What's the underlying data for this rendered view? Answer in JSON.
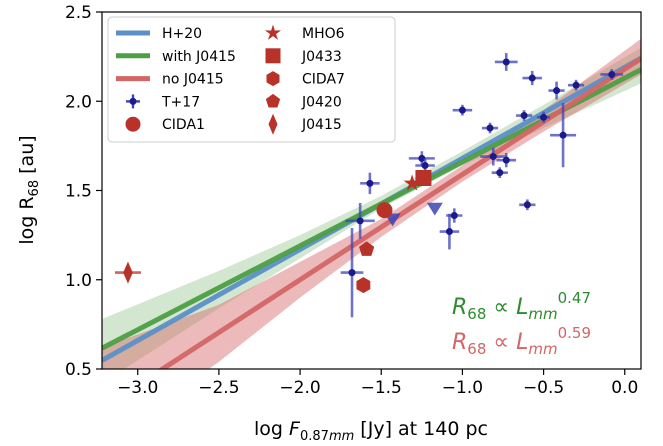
{
  "chart_data": {
    "type": "scatter",
    "xlabel": "log F0.87mm [Jy] at 140 pc",
    "ylabel": "log R68 [au]",
    "xlim": [
      -3.22,
      0.1
    ],
    "ylim": [
      0.5,
      2.5
    ],
    "x_ticks": [
      "−3.0",
      "−2.5",
      "−2.0",
      "−1.5",
      "−1.0",
      "−0.5",
      "0.0"
    ],
    "x_tick_values": [
      -3.0,
      -2.5,
      -2.0,
      -1.5,
      -1.0,
      -0.5,
      0.0
    ],
    "y_ticks": [
      "0.5",
      "1.0",
      "1.5",
      "2.0",
      "2.5"
    ],
    "y_tick_values": [
      0.5,
      1.0,
      1.5,
      2.0,
      2.5
    ],
    "grid": false,
    "legend_position": "top-left",
    "legend": [
      {
        "label": "H+20",
        "kind": "line",
        "color": "#5b8fc7"
      },
      {
        "label": "with J0415",
        "kind": "line",
        "color": "#4e9e45"
      },
      {
        "label": "no J0415",
        "kind": "line",
        "color": "#d46565"
      },
      {
        "label": "T+17",
        "kind": "errorpoint",
        "color": "#1a1a8c"
      },
      {
        "label": "CIDA1",
        "kind": "circle",
        "color": "#b8322a"
      },
      {
        "label": "MHO6",
        "kind": "star",
        "color": "#b8322a"
      },
      {
        "label": "J0433",
        "kind": "square",
        "color": "#b8322a"
      },
      {
        "label": "CIDA7",
        "kind": "hexagon",
        "color": "#b8322a"
      },
      {
        "label": "J0420",
        "kind": "pentagon",
        "color": "#b8322a"
      },
      {
        "label": "J0415",
        "kind": "diamond",
        "color": "#b8322a"
      }
    ],
    "fits": [
      {
        "name": "H+20",
        "slope": 0.51,
        "intercept": 2.19,
        "color": "#5b8fc7"
      },
      {
        "name": "with J0415",
        "slope": 0.47,
        "intercept": 2.13,
        "color": "#4e9e45",
        "band": [
          [
            -3.22,
            0.42,
            0.78
          ],
          [
            -2.5,
            0.84,
            1.05
          ],
          [
            -2.0,
            1.12,
            1.25
          ],
          [
            -1.5,
            1.4,
            1.47
          ],
          [
            -1.0,
            1.64,
            1.72
          ],
          [
            -0.5,
            1.85,
            1.98
          ],
          [
            0.1,
            2.1,
            2.3
          ]
        ]
      },
      {
        "name": "no J0415",
        "slope": 0.59,
        "intercept": 2.18,
        "color": "#d46565",
        "band": [
          [
            -3.22,
            0.08,
            0.62
          ],
          [
            -2.5,
            0.54,
            0.86
          ],
          [
            -2.0,
            0.9,
            1.1
          ],
          [
            -1.5,
            1.24,
            1.34
          ],
          [
            -1.0,
            1.55,
            1.64
          ],
          [
            -0.5,
            1.83,
            1.95
          ],
          [
            0.1,
            2.15,
            2.35
          ]
        ]
      }
    ],
    "series": [
      {
        "name": "T+17",
        "color": "#1a1a8c",
        "points": [
          {
            "x": -0.73,
            "y": 2.22,
            "xerr": 0.07,
            "yerr": 0.05
          },
          {
            "x": -0.57,
            "y": 2.13,
            "xerr": 0.06,
            "yerr": 0.04
          },
          {
            "x": -0.42,
            "y": 2.06,
            "xerr": 0.05,
            "yerr": 0.05
          },
          {
            "x": -0.3,
            "y": 2.09,
            "xerr": 0.05,
            "yerr": 0.03
          },
          {
            "x": -0.08,
            "y": 2.15,
            "xerr": 0.07,
            "yerr": 0.03
          },
          {
            "x": -1.0,
            "y": 1.95,
            "xerr": 0.06,
            "yerr": 0.03
          },
          {
            "x": -0.5,
            "y": 1.91,
            "xerr": 0.04,
            "yerr": 0.03
          },
          {
            "x": -0.38,
            "y": 1.81,
            "xerr": 0.08,
            "yerr": 0.18
          },
          {
            "x": -0.62,
            "y": 1.92,
            "xerr": 0.05,
            "yerr": 0.03
          },
          {
            "x": -0.83,
            "y": 1.85,
            "xerr": 0.05,
            "yerr": 0.03
          },
          {
            "x": -0.81,
            "y": 1.69,
            "xerr": 0.08,
            "yerr": 0.05
          },
          {
            "x": -0.73,
            "y": 1.67,
            "xerr": 0.06,
            "yerr": 0.04
          },
          {
            "x": -0.77,
            "y": 1.6,
            "xerr": 0.05,
            "yerr": 0.03
          },
          {
            "x": -1.25,
            "y": 1.68,
            "xerr": 0.08,
            "yerr": 0.04
          },
          {
            "x": -1.23,
            "y": 1.64,
            "xerr": 0.06,
            "yerr": 0.04
          },
          {
            "x": -1.57,
            "y": 1.54,
            "xerr": 0.06,
            "yerr": 0.06
          },
          {
            "x": -1.63,
            "y": 1.33,
            "xerr": 0.09,
            "yerr": 0.1
          },
          {
            "x": -1.05,
            "y": 1.36,
            "xerr": 0.05,
            "yerr": 0.04
          },
          {
            "x": -1.08,
            "y": 1.27,
            "xerr": 0.06,
            "yerr": 0.1
          },
          {
            "x": -0.6,
            "y": 1.42,
            "xerr": 0.05,
            "yerr": 0.03
          },
          {
            "x": -1.68,
            "y": 1.04,
            "xerr": 0.07,
            "yerr": 0.25
          }
        ]
      },
      {
        "name": "upper limits",
        "color": "#3d44b5",
        "points": [
          {
            "x": -1.43,
            "y": 1.34
          },
          {
            "x": -1.17,
            "y": 1.4
          }
        ]
      },
      {
        "name": "CIDA1",
        "marker": "circle",
        "color": "#b8322a",
        "points": [
          {
            "x": -1.48,
            "y": 1.39
          }
        ]
      },
      {
        "name": "MHO6",
        "marker": "star",
        "color": "#b8322a",
        "points": [
          {
            "x": -1.31,
            "y": 1.54
          }
        ]
      },
      {
        "name": "J0433",
        "marker": "square",
        "color": "#b8322a",
        "points": [
          {
            "x": -1.24,
            "y": 1.57
          }
        ]
      },
      {
        "name": "CIDA7",
        "marker": "hexagon",
        "color": "#b8322a",
        "points": [
          {
            "x": -1.61,
            "y": 0.97
          }
        ]
      },
      {
        "name": "J0420",
        "marker": "pentagon",
        "color": "#b8322a",
        "points": [
          {
            "x": -1.59,
            "y": 1.17
          }
        ]
      },
      {
        "name": "J0415",
        "marker": "diamond",
        "color": "#b8322a",
        "points": [
          {
            "x": -3.06,
            "y": 1.04,
            "xerr": 0.08,
            "yerr": 0.04
          }
        ]
      }
    ],
    "annotations": [
      {
        "text": "R68 ∝ Lmm^0.47",
        "color": "#2e8b2e"
      },
      {
        "text": "R68 ∝ Lmm^0.59",
        "color": "#d46565"
      }
    ]
  }
}
